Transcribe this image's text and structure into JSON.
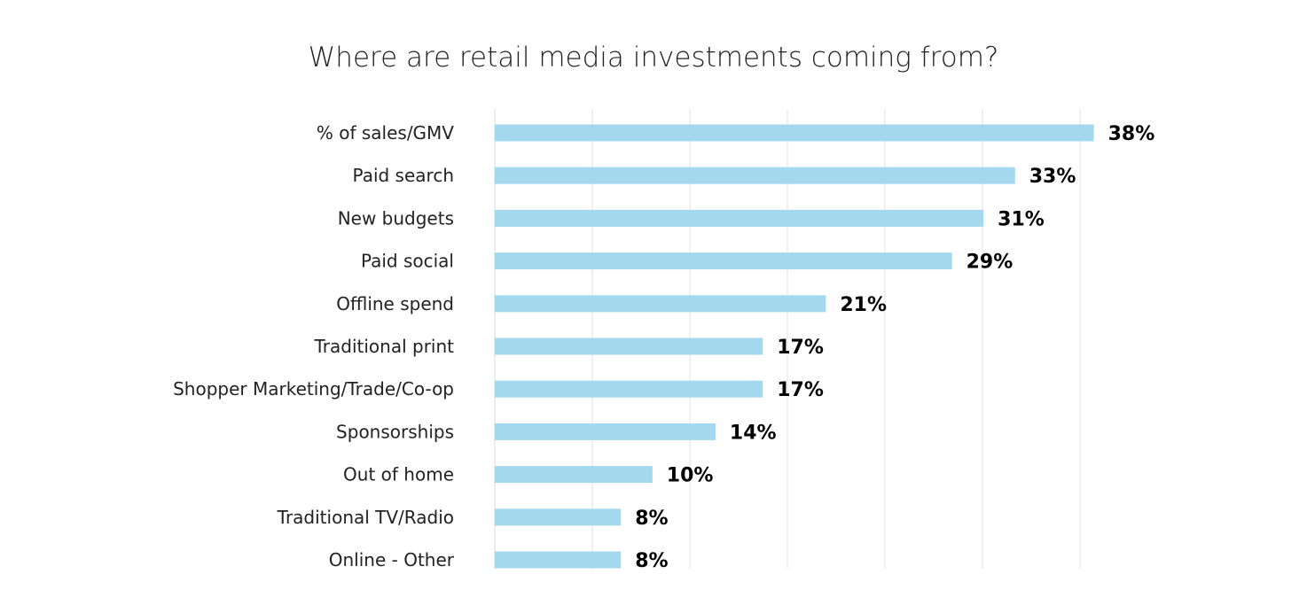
{
  "chart_data": {
    "type": "bar",
    "orientation": "horizontal",
    "title": "Where are retail media investments coming from?",
    "xlabel": "",
    "ylabel": "",
    "categories": [
      "% of sales/GMV",
      "Paid search",
      "New budgets",
      "Paid social",
      "Offline spend",
      "Traditional print",
      "Shopper Marketing/Trade/Co-op",
      "Sponsorships",
      "Out of home",
      "Traditional TV/Radio",
      "Online - Other"
    ],
    "values": [
      38,
      33,
      31,
      29,
      21,
      17,
      17,
      14,
      10,
      8,
      8
    ],
    "value_labels": [
      "38%",
      "33%",
      "31%",
      "29%",
      "21%",
      "17%",
      "17%",
      "14%",
      "10%",
      "8%",
      "8%"
    ],
    "unit": "%",
    "xlim": [
      0,
      40
    ],
    "grid": true,
    "legend": "none",
    "colors": {
      "bar": "#a3d8ee",
      "grid": "#ececec"
    }
  }
}
